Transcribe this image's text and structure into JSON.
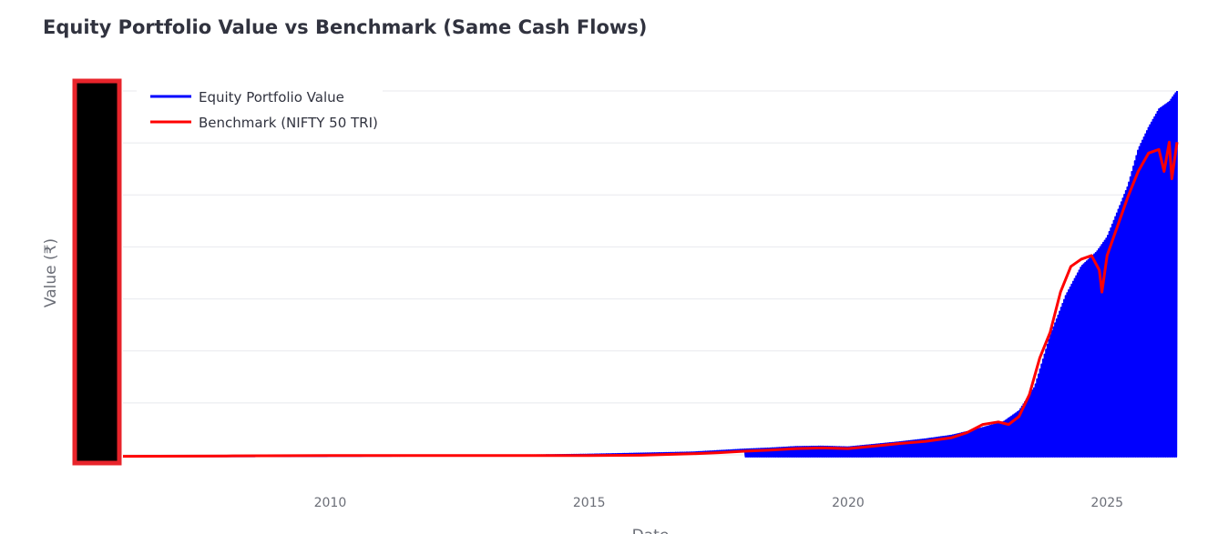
{
  "title": "Equity Portfolio Value vs Benchmark (Same Cash Flows)",
  "colors": {
    "portfolio": "#0000ff",
    "benchmark": "#ff0000",
    "grid": "#e8e9ee",
    "redaction_fill": "#000000",
    "redaction_border": "#e8242b"
  },
  "chart_data": {
    "type": "line",
    "xlabel": "Date",
    "ylabel": "Value (₹)",
    "x_ticks": [
      "2010",
      "2015",
      "2020",
      "2025"
    ],
    "y_ticks": [],
    "y_tick_labels_redacted": true,
    "grid": true,
    "legend_position": "top-left",
    "x_range": [
      2006.0,
      2026.35
    ],
    "series": [
      {
        "name": "Equity Portfolio Value",
        "color": "#0000ff",
        "style": "dense oscillating line, lower envelope near zero after 2018",
        "x": [
          2006.0,
          2008,
          2010,
          2012,
          2014,
          2015,
          2016,
          2017,
          2017.5,
          2018,
          2018.5,
          2019,
          2019.5,
          2020,
          2020.5,
          2021,
          2021.5,
          2022,
          2022.5,
          2023,
          2023.3,
          2023.6,
          2023.9,
          2024.2,
          2024.5,
          2024.8,
          2025.0,
          2025.2,
          2025.4,
          2025.6,
          2025.8,
          2026.0,
          2026.2,
          2026.35
        ],
        "y_upper": [
          0.001,
          0.001,
          0.002,
          0.003,
          0.004,
          0.006,
          0.009,
          0.012,
          0.016,
          0.02,
          0.023,
          0.027,
          0.028,
          0.026,
          0.033,
          0.04,
          0.048,
          0.058,
          0.075,
          0.095,
          0.125,
          0.19,
          0.33,
          0.44,
          0.52,
          0.56,
          0.6,
          0.67,
          0.74,
          0.84,
          0.9,
          0.95,
          0.97,
          1.0
        ],
        "y_lower": [
          0.0,
          0.0,
          0.0,
          0.0,
          0.0,
          0.0,
          0.0,
          0.0,
          0.0,
          0.0,
          0.0,
          0.0,
          0.0,
          0.0,
          0.0,
          0.0,
          0.0,
          0.0,
          0.0,
          0.0,
          0.0,
          0.0,
          0.0,
          0.0,
          0.0,
          0.0,
          0.0,
          0.0,
          0.0,
          0.0,
          0.0,
          0.0,
          0.0,
          0.0
        ]
      },
      {
        "name": "Benchmark (NIFTY 50 TRI)",
        "color": "#ff0000",
        "x": [
          2006.0,
          2008,
          2010,
          2012,
          2014,
          2015,
          2016,
          2017,
          2017.5,
          2018,
          2018.5,
          2019,
          2019.5,
          2020,
          2020.5,
          2021,
          2021.5,
          2022,
          2022.3,
          2022.6,
          2022.9,
          2023.1,
          2023.3,
          2023.5,
          2023.7,
          2023.9,
          2024.1,
          2024.3,
          2024.5,
          2024.7,
          2024.85,
          2024.9,
          2025.0,
          2025.2,
          2025.4,
          2025.6,
          2025.8,
          2026.0,
          2026.1,
          2026.2,
          2026.25,
          2026.35
        ],
        "y": [
          0.001,
          0.002,
          0.003,
          0.003,
          0.003,
          0.003,
          0.004,
          0.008,
          0.011,
          0.015,
          0.018,
          0.022,
          0.024,
          0.022,
          0.029,
          0.036,
          0.042,
          0.052,
          0.066,
          0.088,
          0.095,
          0.088,
          0.11,
          0.17,
          0.27,
          0.34,
          0.45,
          0.52,
          0.54,
          0.55,
          0.51,
          0.45,
          0.55,
          0.63,
          0.71,
          0.78,
          0.83,
          0.84,
          0.78,
          0.86,
          0.76,
          0.86
        ]
      }
    ]
  }
}
